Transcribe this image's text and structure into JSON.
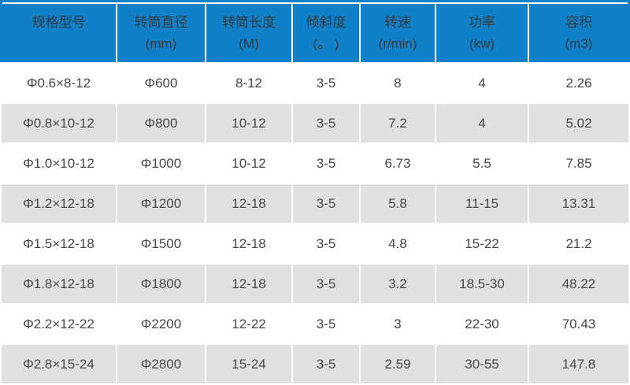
{
  "colors": {
    "header_bg": "#1081c9",
    "header_text": "#333a40",
    "row_alt_bg": "#e0e0e0",
    "row_bg": "#ffffff",
    "body_text": "#474747",
    "top_border": "#1081c9"
  },
  "table": {
    "columns": [
      {
        "label": "规格型号",
        "unit": ""
      },
      {
        "label": "转筒直径",
        "unit": "(mm)"
      },
      {
        "label": "转筒长度",
        "unit": "(M)"
      },
      {
        "label": "倾斜度",
        "unit": "(。 )"
      },
      {
        "label": "转速",
        "unit": "(r/min)"
      },
      {
        "label": "功率",
        "unit": "(kw)"
      },
      {
        "label": "容积",
        "unit": "(m3)"
      }
    ],
    "rows": [
      {
        "cells": [
          "Φ0.6×8-12",
          "Φ600",
          "8-12",
          "3-5",
          "8",
          "4",
          "2.26"
        ]
      },
      {
        "cells": [
          "Φ0.8×10-12",
          "Φ800",
          "10-12",
          "3-5",
          "7.2",
          "4",
          "5.02"
        ]
      },
      {
        "cells": [
          "Φ1.0×10-12",
          "Φ1000",
          "10-12",
          "3-5",
          "6.73",
          "5.5",
          "7.85"
        ]
      },
      {
        "cells": [
          "Φ1.2×12-18",
          "Φ1200",
          "12-18",
          "3-5",
          "5.8",
          "11-15",
          "13.31"
        ]
      },
      {
        "cells": [
          "Φ1.5×12-18",
          "Φ1500",
          "12-18",
          "3-5",
          "4.8",
          "15-22",
          "21.2"
        ]
      },
      {
        "cells": [
          "Φ1.8×12-18",
          "Φ1800",
          "12-18",
          "3-5",
          "3.2",
          "18.5-30",
          "48.22"
        ]
      },
      {
        "cells": [
          "Φ2.2×12-22",
          "Φ2200",
          "12-22",
          "3-5",
          "3",
          "22-30",
          "70.43"
        ]
      },
      {
        "cells": [
          "Φ2.8×15-24",
          "Φ2800",
          "15-24",
          "3-5",
          "2.59",
          "30-55",
          "147.8"
        ]
      }
    ]
  }
}
